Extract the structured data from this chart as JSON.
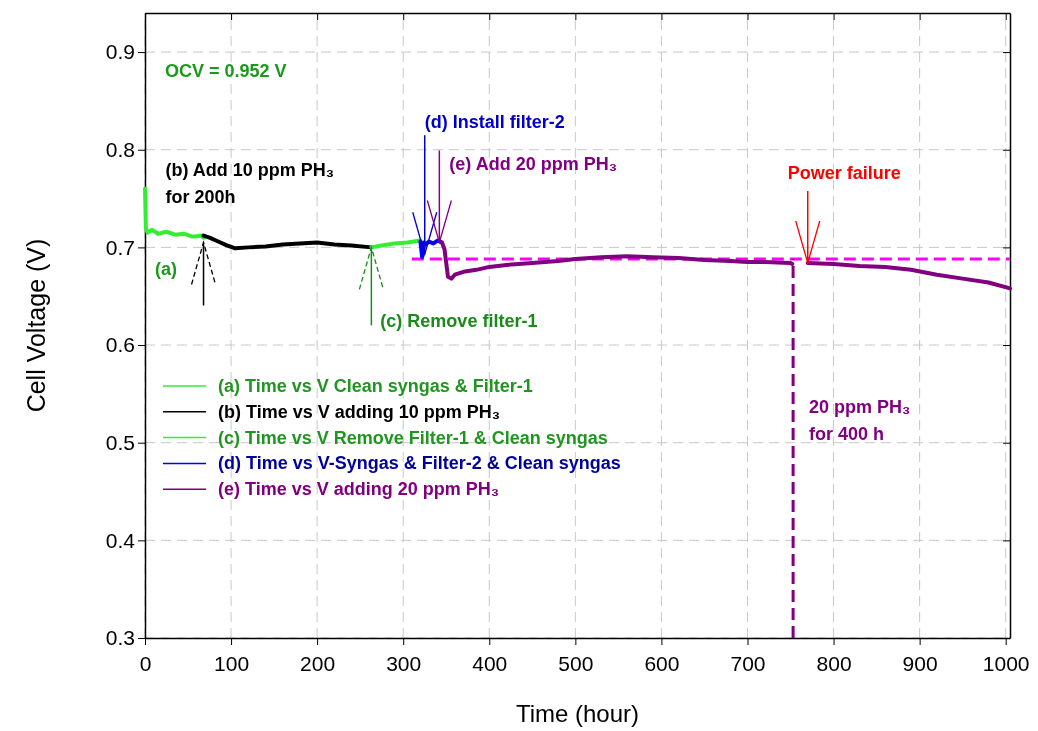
{
  "chart_data": {
    "type": "line",
    "xlabel": "Time (hour)",
    "ylabel": "Cell Voltage (V)",
    "xlim": [
      0,
      1005
    ],
    "ylim": [
      0.3,
      0.94
    ],
    "xticks": [
      0,
      100,
      200,
      300,
      400,
      500,
      600,
      700,
      800,
      900,
      1000
    ],
    "yticks": [
      0.3,
      0.4,
      0.5,
      0.6,
      0.7,
      0.8,
      0.9
    ],
    "grid": true,
    "legend": "left",
    "line_style": "solid",
    "series": [
      {
        "name": "(a) Time vs V Clean syngas & Filter-1",
        "color": "#33ee33",
        "x": [
          0,
          0.5,
          1,
          3,
          8,
          15,
          25,
          35,
          45,
          55,
          65,
          68
        ],
        "values": [
          0.76,
          0.74,
          0.72,
          0.715,
          0.718,
          0.714,
          0.716,
          0.713,
          0.714,
          0.711,
          0.712,
          0.71
        ]
      },
      {
        "name": "(b) Time vs V adding 10 ppm PH₃",
        "color": "#000000",
        "x": [
          68,
          75,
          85,
          95,
          105,
          120,
          140,
          160,
          180,
          200,
          220,
          240,
          263
        ],
        "values": [
          0.712,
          0.71,
          0.706,
          0.702,
          0.699,
          0.7,
          0.701,
          0.703,
          0.704,
          0.705,
          0.703,
          0.702,
          0.7
        ]
      },
      {
        "name": "(c) Time vs V Remove Filter-1 & Clean syngas",
        "color": "#33ee33",
        "x": [
          263,
          275,
          290,
          305,
          320
        ],
        "values": [
          0.7,
          0.702,
          0.704,
          0.705,
          0.707
        ]
      },
      {
        "name": "(d) Time vs V-Syngas & Filter-2 & Clean syngas",
        "color": "#0000ff",
        "x": [
          320,
          322,
          324,
          326,
          330,
          335,
          340,
          345
        ],
        "values": [
          0.706,
          0.69,
          0.705,
          0.703,
          0.706,
          0.704,
          0.707,
          0.705
        ]
      },
      {
        "name": "(e) Time vs V adding 20 ppm PH₃",
        "color": "#800080",
        "x": [
          345,
          348,
          352,
          356,
          360,
          370,
          385,
          400,
          420,
          450,
          480,
          500,
          530,
          560,
          590,
          620,
          650,
          680,
          700,
          720,
          750,
          752,
          760,
          770,
          800,
          830,
          860,
          890,
          920,
          950,
          980,
          1005
        ],
        "values": [
          0.705,
          0.698,
          0.67,
          0.668,
          0.672,
          0.675,
          0.677,
          0.68,
          0.682,
          0.684,
          0.686,
          0.688,
          0.69,
          0.691,
          0.69,
          0.689,
          0.687,
          0.686,
          0.685,
          0.685,
          0.684,
          0.683,
          null,
          0.684,
          0.683,
          0.681,
          0.68,
          0.677,
          0.672,
          0.668,
          0.664,
          0.658
        ]
      }
    ],
    "ref_lines": [
      {
        "axis": "y",
        "value": 0.688,
        "color": "#ff00ff",
        "line_style": "dashed"
      },
      {
        "axis": "x",
        "value": 753,
        "color": "#800080",
        "line_style": "dashed",
        "label": "20 ppm PH₃\nfor 400 h"
      }
    ],
    "annotations": [
      "OCV = 0.952 V",
      "(a)",
      {
        "text": "(b) Add 10 ppm PH₃\nfor 200h",
        "x": 68,
        "y": 0.705
      },
      {
        "text": "(c) Remove filter-1",
        "x": 263,
        "y": 0.7
      },
      {
        "text": "(d) Install filter-2",
        "x": 325,
        "y": 0.693
      },
      {
        "text": "(e) Add 20 ppm PH₃",
        "x": 342,
        "y": 0.705
      },
      {
        "text": "Power failure",
        "x": 770,
        "y": 0.684
      }
    ]
  }
}
